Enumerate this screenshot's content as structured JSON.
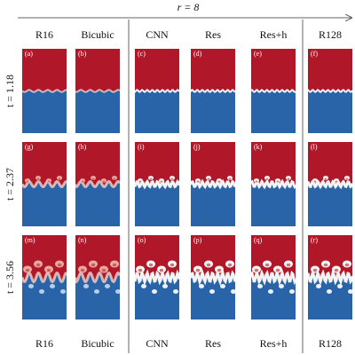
{
  "arrow_label": "r = 8",
  "columns": [
    "R16",
    "Bicubic",
    "CNN",
    "Res",
    "Res+h",
    "R128"
  ],
  "rows": [
    "t = 1.18",
    "t = 2.37",
    "t = 3.56"
  ],
  "panels": [
    [
      "(a)",
      "(b)",
      "(c)",
      "(d)",
      "(e)",
      "(f)"
    ],
    [
      "(g)",
      "(h)",
      "(i)",
      "(j)",
      "(k)",
      "(l)"
    ],
    [
      "(m)",
      "(n)",
      "(o)",
      "(p)",
      "(q)",
      "(r)"
    ]
  ]
}
